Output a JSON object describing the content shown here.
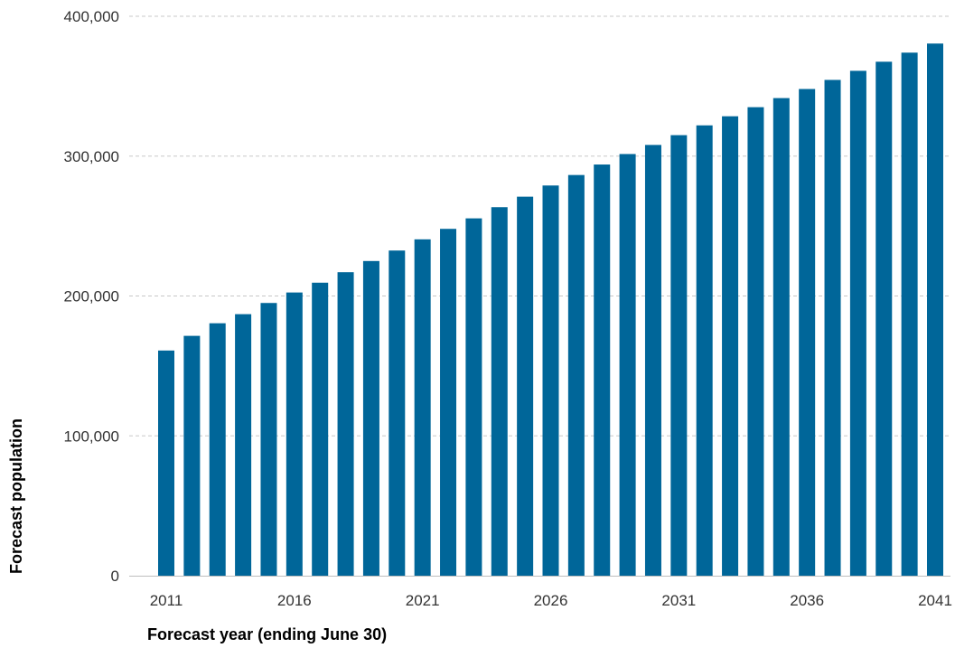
{
  "chart_data": {
    "type": "bar",
    "xlabel": "Forecast year (ending June 30)",
    "ylabel": "Forecast population",
    "ylim": [
      0,
      400000
    ],
    "yticks": [
      0,
      100000,
      200000,
      300000,
      400000
    ],
    "ytick_labels": [
      "0",
      "100,000",
      "200,000",
      "300,000",
      "400,000"
    ],
    "xtick_labels": [
      "2011",
      "2016",
      "2021",
      "2026",
      "2031",
      "2036",
      "2041"
    ],
    "grid": true,
    "bar_color": "#006699",
    "categories": [
      "2011",
      "2012",
      "2013",
      "2014",
      "2015",
      "2016",
      "2017",
      "2018",
      "2019",
      "2020",
      "2021",
      "2022",
      "2023",
      "2024",
      "2025",
      "2026",
      "2027",
      "2028",
      "2029",
      "2030",
      "2031",
      "2032",
      "2033",
      "2034",
      "2035",
      "2036",
      "2037",
      "2038",
      "2039",
      "2040",
      "2041"
    ],
    "values": [
      161000,
      171500,
      180500,
      187000,
      195000,
      202500,
      209500,
      217000,
      225000,
      232500,
      240500,
      248000,
      255500,
      263500,
      271000,
      279000,
      286500,
      294000,
      301500,
      308000,
      315000,
      322000,
      328500,
      335000,
      341500,
      348000,
      354500,
      361000,
      367500,
      374000,
      380500
    ]
  }
}
